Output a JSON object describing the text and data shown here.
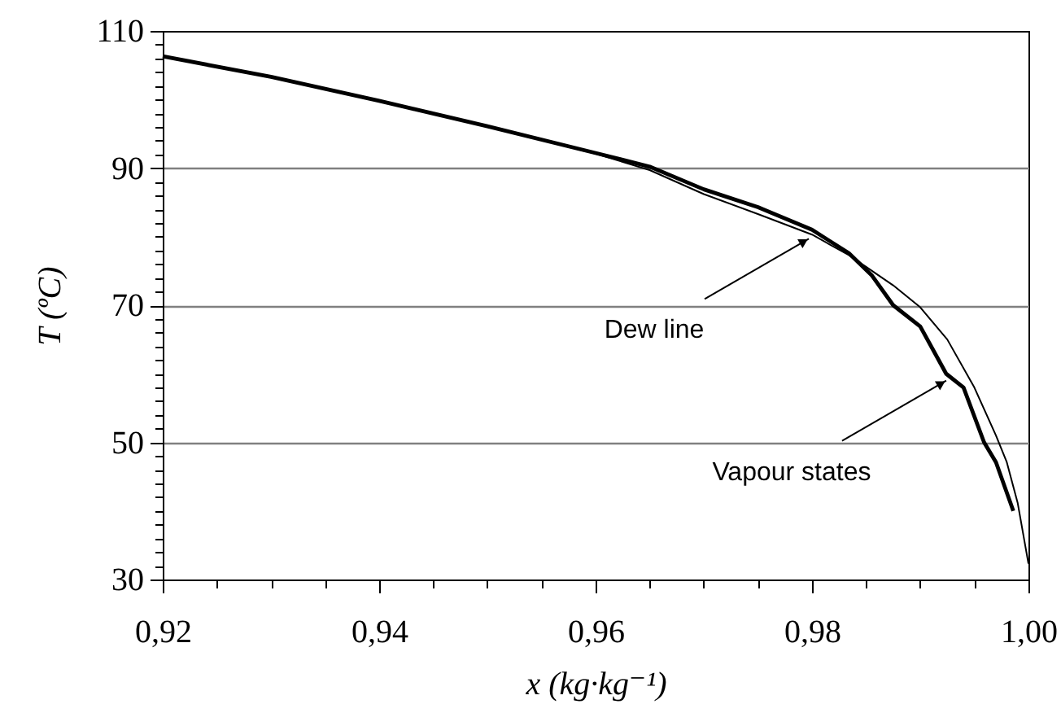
{
  "chart_data": {
    "type": "line",
    "xlabel": "x (kg·kg⁻¹)",
    "ylabel": "T (ºC)",
    "grid": "y",
    "line_style": "solid",
    "marker": "none",
    "xlim": [
      0.92,
      1.0
    ],
    "ylim": [
      30,
      110
    ],
    "xticks": [
      {
        "value": 0.92,
        "label": "0,92"
      },
      {
        "value": 0.925,
        "label": null
      },
      {
        "value": 0.93,
        "label": null
      },
      {
        "value": 0.935,
        "label": null
      },
      {
        "value": 0.94,
        "label": "0,94"
      },
      {
        "value": 0.945,
        "label": null
      },
      {
        "value": 0.95,
        "label": null
      },
      {
        "value": 0.955,
        "label": null
      },
      {
        "value": 0.96,
        "label": "0,96"
      },
      {
        "value": 0.965,
        "label": null
      },
      {
        "value": 0.97,
        "label": null
      },
      {
        "value": 0.975,
        "label": null
      },
      {
        "value": 0.98,
        "label": "0,98"
      },
      {
        "value": 0.985,
        "label": null
      },
      {
        "value": 0.99,
        "label": null
      },
      {
        "value": 0.995,
        "label": null
      },
      {
        "value": 1.0,
        "label": "1,00"
      }
    ],
    "yticks": [
      30,
      {
        "value": 32,
        "label": null
      },
      {
        "value": 34,
        "label": null
      },
      {
        "value": 36,
        "label": null
      },
      {
        "value": 38,
        "label": null
      },
      {
        "value": 40,
        "label": null
      },
      {
        "value": 42,
        "label": null
      },
      {
        "value": 44,
        "label": null
      },
      {
        "value": 46,
        "label": null
      },
      {
        "value": 48,
        "label": null
      },
      50,
      {
        "value": 52,
        "label": null
      },
      {
        "value": 54,
        "label": null
      },
      {
        "value": 56,
        "label": null
      },
      {
        "value": 58,
        "label": null
      },
      {
        "value": 60,
        "label": null
      },
      {
        "value": 62,
        "label": null
      },
      {
        "value": 64,
        "label": null
      },
      {
        "value": 66,
        "label": null
      },
      {
        "value": 68,
        "label": null
      },
      70,
      {
        "value": 72,
        "label": null
      },
      {
        "value": 74,
        "label": null
      },
      {
        "value": 76,
        "label": null
      },
      {
        "value": 78,
        "label": null
      },
      {
        "value": 80,
        "label": null
      },
      {
        "value": 82,
        "label": null
      },
      {
        "value": 84,
        "label": null
      },
      {
        "value": 86,
        "label": null
      },
      {
        "value": 88,
        "label": null
      },
      90,
      {
        "value": 92,
        "label": null
      },
      {
        "value": 94,
        "label": null
      },
      {
        "value": 96,
        "label": null
      },
      {
        "value": 98,
        "label": null
      },
      {
        "value": 100,
        "label": null
      },
      {
        "value": 102,
        "label": null
      },
      {
        "value": 104,
        "label": null
      },
      {
        "value": 106,
        "label": null
      },
      {
        "value": 108,
        "label": null
      },
      110
    ],
    "series": [
      {
        "color": "#000000",
        "x": [
          0.92,
          0.93,
          0.94,
          0.95,
          0.96,
          0.965,
          0.97,
          0.975,
          0.98,
          0.9834,
          0.9855,
          0.9875,
          0.99,
          0.9924,
          0.994,
          0.9959,
          0.997,
          0.9986
        ],
        "values": [
          106.3,
          103.3,
          99.8,
          96.1,
          92.2,
          90.2,
          86.9,
          84.3,
          81.0,
          77.6,
          74.4,
          70,
          66.9,
          60,
          58,
          50,
          47.1,
          40.0
        ]
      },
      {
        "color": "#000000",
        "x": [
          0.92,
          0.93,
          0.94,
          0.95,
          0.96,
          0.965,
          0.97,
          0.975,
          0.98,
          0.9834,
          0.985,
          0.9875,
          0.99,
          0.9925,
          0.995,
          0.997,
          0.998,
          0.999,
          1.0
        ],
        "values": [
          106.3,
          103.3,
          99.8,
          96.1,
          92.1,
          89.7,
          86.2,
          83.3,
          80.3,
          77.3,
          75.6,
          72.9,
          69.7,
          65.0,
          58.0,
          51.0,
          47.1,
          41.2,
          32.3
        ]
      }
    ],
    "annotations": [
      {
        "text": "Dew line",
        "x": 0.9797,
        "y": 79.7
      },
      {
        "text": "Vapour states",
        "x": 0.9924,
        "y": 59.0
      }
    ]
  }
}
